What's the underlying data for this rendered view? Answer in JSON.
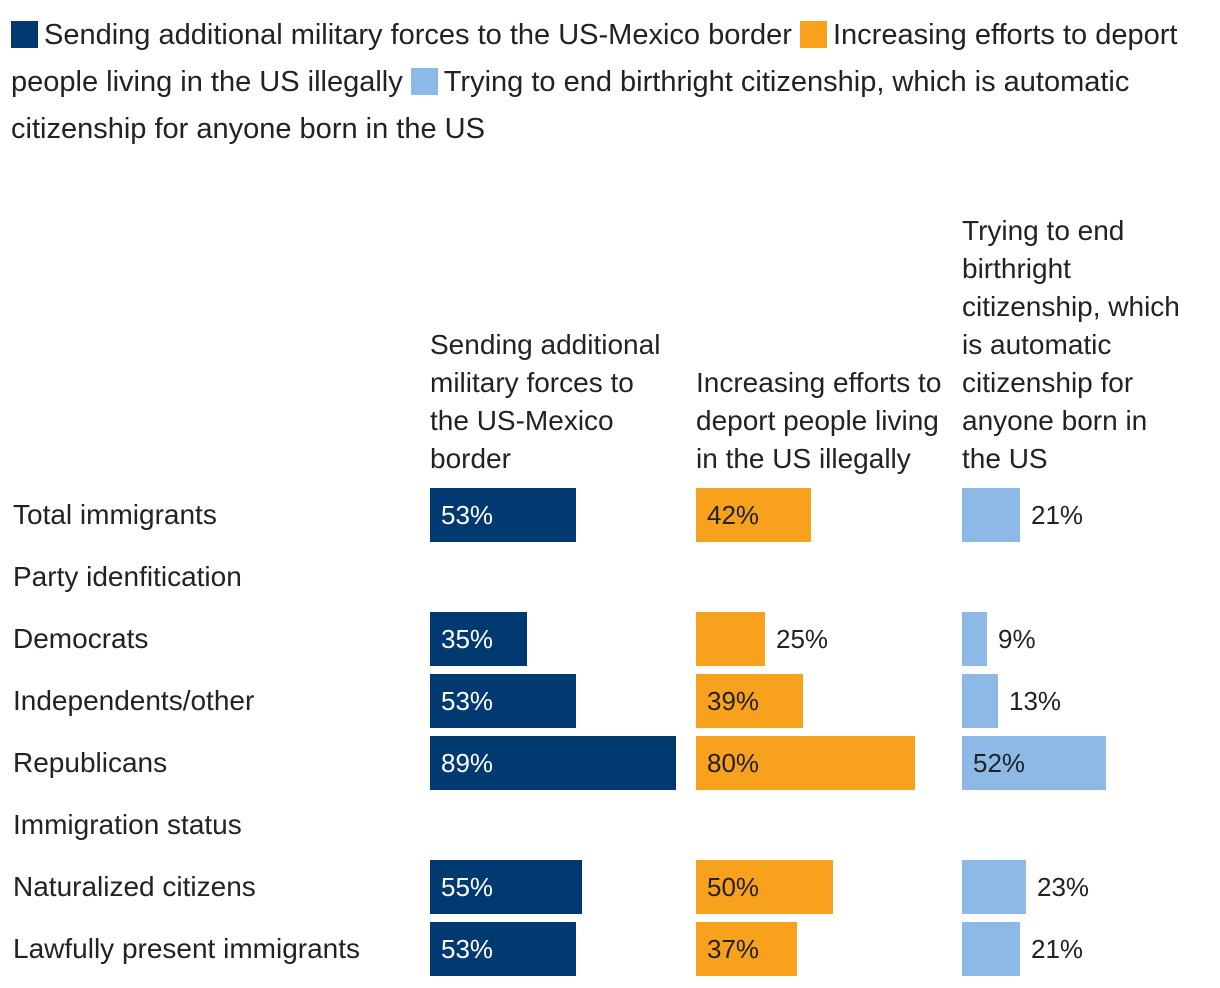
{
  "chart_data": {
    "type": "bar",
    "orientation": "horizontal",
    "legend": [
      {
        "name": "Sending additional military forces to the US-Mexico border",
        "color": "#003a70"
      },
      {
        "name": "Increasing efforts to deport people living in the US illegally",
        "color": "#f7a11d"
      },
      {
        "name": "Trying to end birthright citizenship, which is automatic citizenship for anyone born in the US",
        "color": "#8db9e6"
      }
    ],
    "series": [
      {
        "name": "Sending additional military forces to the US-Mexico border",
        "header": "Sending additional military forces to the US-Mexico border",
        "color": "#003a70",
        "values": [
          53,
          null,
          35,
          53,
          89,
          null,
          55,
          53
        ]
      },
      {
        "name": "Increasing efforts to deport people living in the US illegally",
        "header": "Increasing efforts to deport people living in the US illegally",
        "color": "#f7a11d",
        "values": [
          42,
          null,
          25,
          39,
          80,
          null,
          50,
          37
        ]
      },
      {
        "name": "Trying to end birthright citizenship, which is automatic citizenship for anyone born in the US",
        "header": "Trying to end birthright citizenship, which is automatic citizenship for anyone born in the US",
        "color": "#8db9e6",
        "values": [
          21,
          null,
          9,
          13,
          52,
          null,
          23,
          21
        ]
      }
    ],
    "categories": [
      "Total immigrants",
      "Party idenfitication",
      "Democrats",
      "Independents/other",
      "Republicans",
      "Immigration status",
      "Naturalized citizens",
      "Lawfully present immigrants"
    ],
    "value_suffix": "%",
    "xlim": [
      0,
      100
    ]
  }
}
